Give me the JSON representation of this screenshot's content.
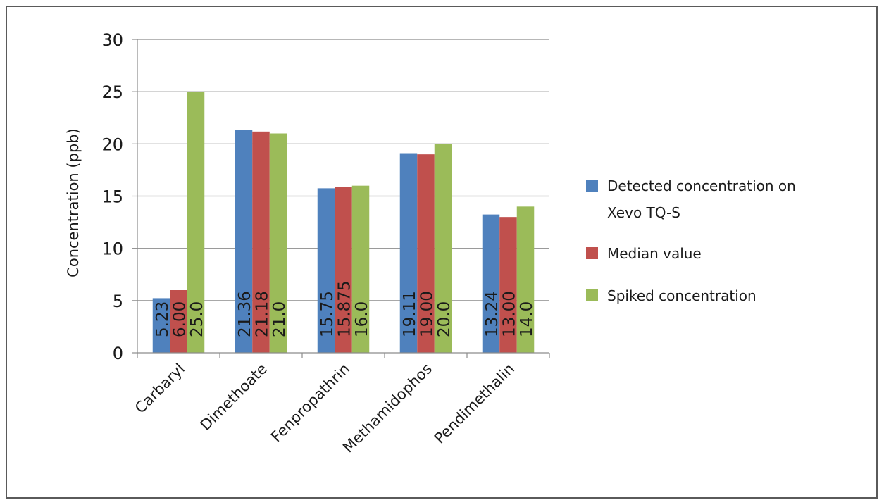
{
  "chart_data": {
    "type": "bar",
    "title": "",
    "xlabel": "",
    "ylabel": "Concentration (ppb)",
    "ylim": [
      0,
      30
    ],
    "yticks": [
      0,
      5,
      10,
      15,
      20,
      25,
      30
    ],
    "grid": true,
    "legend_position": "right",
    "categories": [
      "Carbaryl",
      "Dimethoate",
      "Fenpropathrin",
      "Methamidophos",
      "Pendimethalin"
    ],
    "series": [
      {
        "name": "Detected concentration on Xevo TQ-S",
        "legend_lines": [
          "Detected concentration on",
          "Xevo TQ-S"
        ],
        "color": "#4f81bd",
        "values": [
          5.23,
          21.36,
          15.75,
          19.11,
          13.24
        ],
        "labels": [
          "5.23",
          "21.36",
          "15.75",
          "19.11",
          "13.24"
        ]
      },
      {
        "name": "Median value",
        "legend_lines": [
          "Median value"
        ],
        "color": "#c0504d",
        "values": [
          6.0,
          21.18,
          15.875,
          19.0,
          13.0
        ],
        "labels": [
          "6.00",
          "21.18",
          "15.875",
          "19.00",
          "13.00"
        ]
      },
      {
        "name": "Spiked concentration",
        "legend_lines": [
          "Spiked concentration"
        ],
        "color": "#9bbb59",
        "values": [
          25.0,
          21.0,
          16.0,
          20.0,
          14.0
        ],
        "labels": [
          "25.0",
          "21.0",
          "16.0",
          "20.0",
          "14.0"
        ]
      }
    ]
  }
}
